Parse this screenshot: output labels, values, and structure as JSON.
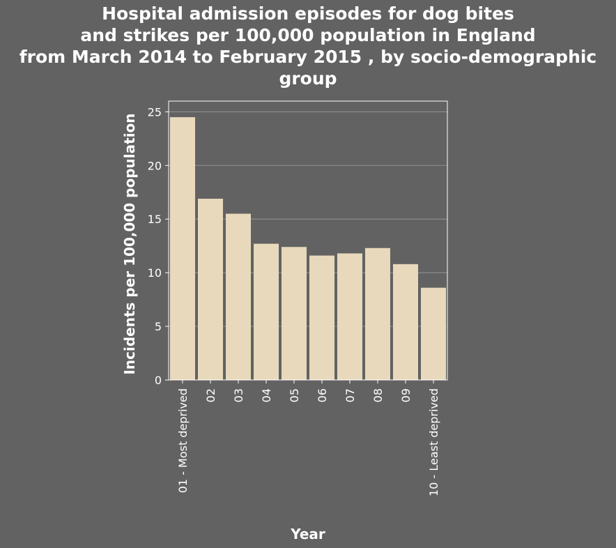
{
  "chart_data": {
    "type": "bar",
    "title": "Hospital admission episodes for dog bites\nand strikes per 100,000 population in England\nfrom March 2014 to February 2015 , by socio-demographic\ngroup",
    "xlabel": "Year",
    "ylabel": "Incidents per 100,000 population",
    "categories": [
      "01 - Most deprived",
      "02",
      "03",
      "04",
      "05",
      "06",
      "07",
      "08",
      "09",
      "10 - Least deprived"
    ],
    "values": [
      24.5,
      16.9,
      15.5,
      12.7,
      12.4,
      11.6,
      11.8,
      12.3,
      10.8,
      8.6
    ],
    "ylim": [
      0,
      26
    ],
    "yticks": [
      0,
      5,
      10,
      15,
      20,
      25
    ],
    "grid": true,
    "colors": {
      "background": "#626262",
      "bar": "#e8d9bd",
      "grid": "#8c8c8c",
      "axis": "#ffffff",
      "text": "#ffffff"
    }
  }
}
